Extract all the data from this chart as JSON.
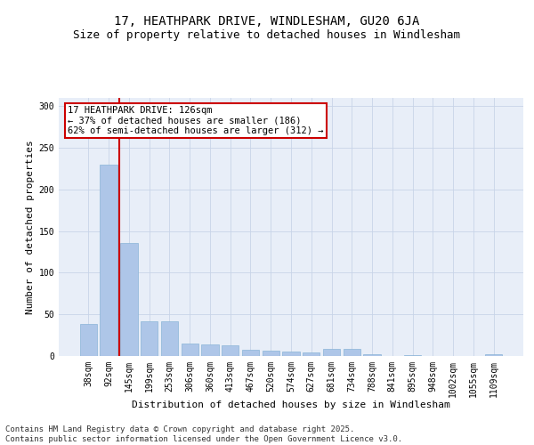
{
  "title1": "17, HEATHPARK DRIVE, WINDLESHAM, GU20 6JA",
  "title2": "Size of property relative to detached houses in Windlesham",
  "xlabel": "Distribution of detached houses by size in Windlesham",
  "ylabel": "Number of detached properties",
  "categories": [
    "38sqm",
    "92sqm",
    "145sqm",
    "199sqm",
    "253sqm",
    "306sqm",
    "360sqm",
    "413sqm",
    "467sqm",
    "520sqm",
    "574sqm",
    "627sqm",
    "681sqm",
    "734sqm",
    "788sqm",
    "841sqm",
    "895sqm",
    "948sqm",
    "1002sqm",
    "1055sqm",
    "1109sqm"
  ],
  "values": [
    38,
    230,
    136,
    42,
    42,
    15,
    14,
    13,
    8,
    6,
    5,
    4,
    9,
    9,
    2,
    0,
    1,
    0,
    0,
    0,
    2
  ],
  "bar_color": "#aec6e8",
  "bar_edge_color": "#8ab4d8",
  "grid_color": "#c8d4e8",
  "background_color": "#e8eef8",
  "vline_color": "#cc0000",
  "annotation_text": "17 HEATHPARK DRIVE: 126sqm\n← 37% of detached houses are smaller (186)\n62% of semi-detached houses are larger (312) →",
  "annotation_box_color": "#ffffff",
  "annotation_edge_color": "#cc0000",
  "ylim": [
    0,
    310
  ],
  "yticks": [
    0,
    50,
    100,
    150,
    200,
    250,
    300
  ],
  "footer": "Contains HM Land Registry data © Crown copyright and database right 2025.\nContains public sector information licensed under the Open Government Licence v3.0.",
  "title1_fontsize": 10,
  "title2_fontsize": 9,
  "xlabel_fontsize": 8,
  "ylabel_fontsize": 8,
  "tick_fontsize": 7,
  "annotation_fontsize": 7.5,
  "footer_fontsize": 6.5
}
